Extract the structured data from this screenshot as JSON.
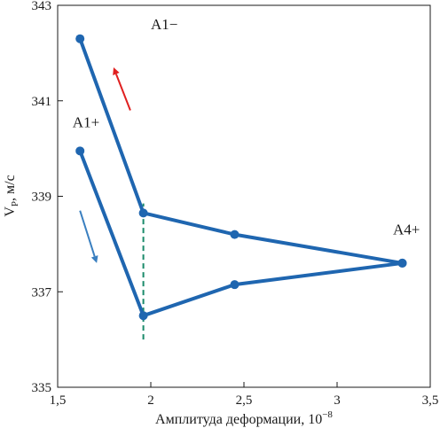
{
  "chart_data": {
    "type": "line",
    "xlabel": "Амплитуда деформации, 10",
    "xlabel_sup": "−8",
    "ylabel": "V",
    "ylabel_sub": "P",
    "ylabel_unit": ", м/с",
    "xlim": [
      1.5,
      3.5
    ],
    "ylim": [
      335,
      343
    ],
    "x_ticks": [
      1.5,
      2,
      2.5,
      3,
      3.5
    ],
    "x_tick_labels": [
      "1,5",
      "2",
      "2,5",
      "3",
      "3,5"
    ],
    "y_ticks": [
      335,
      337,
      339,
      341,
      343
    ],
    "y_tick_labels": [
      "335",
      "337",
      "339",
      "341",
      "343"
    ],
    "grid": false,
    "series": [
      {
        "color": "#1f66b0",
        "points": [
          {
            "x": 1.62,
            "y": 342.3
          },
          {
            "x": 1.96,
            "y": 338.65
          },
          {
            "x": 2.45,
            "y": 338.2
          },
          {
            "x": 3.35,
            "y": 337.6
          }
        ]
      },
      {
        "color": "#1f66b0",
        "points": [
          {
            "x": 1.62,
            "y": 339.95
          },
          {
            "x": 1.96,
            "y": 336.5
          },
          {
            "x": 2.45,
            "y": 337.15
          },
          {
            "x": 3.35,
            "y": 337.6
          }
        ]
      }
    ],
    "reference_line": {
      "x": 1.96,
      "y_from": 336.0,
      "y_to": 338.85,
      "color": "#1a8a6a",
      "style": "dashed"
    },
    "annotations": [
      {
        "text": "A1−",
        "x": 2.0,
        "y": 342.5
      },
      {
        "text": "A1+",
        "x": 1.58,
        "y": 340.45
      },
      {
        "text": "A4+",
        "x": 3.3,
        "y": 338.2
      }
    ],
    "arrows": [
      {
        "color": "#e02020",
        "from": {
          "x": 1.89,
          "y": 340.8
        },
        "to": {
          "x": 1.8,
          "y": 341.7
        }
      },
      {
        "color": "#3a7fc0",
        "from": {
          "x": 1.62,
          "y": 338.7
        },
        "to": {
          "x": 1.71,
          "y": 337.6
        }
      }
    ]
  }
}
